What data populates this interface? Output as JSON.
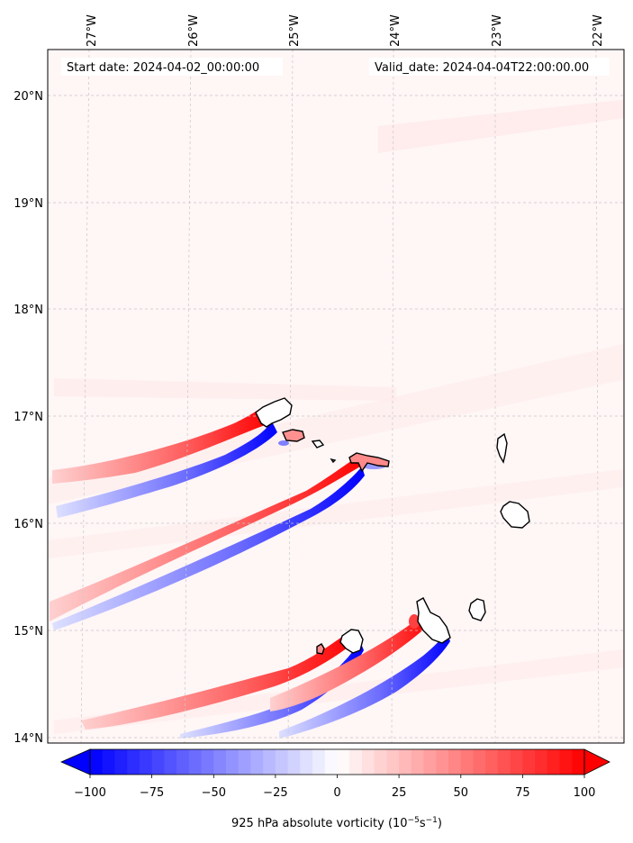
{
  "map": {
    "start_label": "Start date: 2024-04-02_00:00:00",
    "valid_label": "Valid_date: 2024-04-04T22:00:00.00",
    "lon_ticks": [
      "27°W",
      "26°W",
      "25°W",
      "24°W",
      "23°W",
      "22°W"
    ],
    "lat_ticks": [
      "20°N",
      "19°N",
      "18°N",
      "17°N",
      "16°N",
      "15°N",
      "14°N"
    ]
  },
  "colorbar": {
    "label_prefix": "925 hPa absolute vorticity (10",
    "exp1": "−5",
    "mid": "s",
    "exp2": "−1",
    "suffix": ")",
    "ticks": [
      "−100",
      "−75",
      "−50",
      "−25",
      "0",
      "25",
      "50",
      "75",
      "100"
    ],
    "min": -100,
    "max": 100,
    "neg_color": "#0000ff",
    "pos_color": "#ff0000"
  }
}
